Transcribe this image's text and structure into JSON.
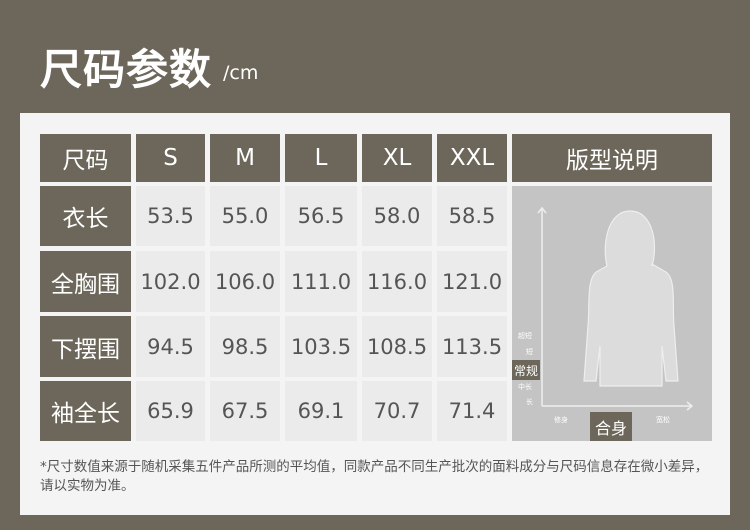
{
  "title": "尺码参数",
  "unit": "/cm",
  "table": {
    "corner": "尺码",
    "sizes": [
      "S",
      "M",
      "L",
      "XL",
      "XXL"
    ],
    "fit_header": "版型说明",
    "rows": [
      {
        "label": "衣长",
        "values": [
          "53.5",
          "55.0",
          "56.5",
          "58.0",
          "58.5"
        ]
      },
      {
        "label": "全胸围",
        "values": [
          "102.0",
          "106.0",
          "111.0",
          "116.0",
          "121.0"
        ]
      },
      {
        "label": "下摆围",
        "values": [
          "94.5",
          "98.5",
          "103.5",
          "108.5",
          "113.5"
        ]
      },
      {
        "label": "袖全长",
        "values": [
          "65.9",
          "67.5",
          "69.1",
          "70.7",
          "71.4"
        ]
      }
    ]
  },
  "fit": {
    "length_levels": [
      "超短",
      "短",
      "常规",
      "中长",
      "长"
    ],
    "width_levels": [
      "修身",
      "合身",
      "宽松"
    ],
    "selected_length": "常规",
    "selected_width": "合身"
  },
  "note": "*尺寸数值来源于随机采集五件产品所测的平均值，同款产品不同生产批次的面料成分与尺码信息存在微小差异，请以实物为准。",
  "colors": {
    "background": "#6c675a",
    "header": "#6c675a",
    "cell": "#ebebeb"
  }
}
